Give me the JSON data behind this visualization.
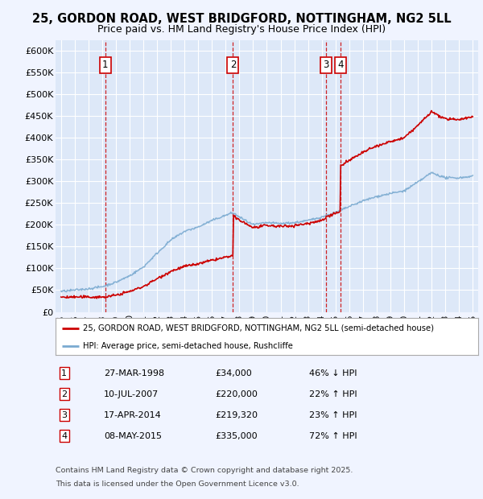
{
  "title_line1": "25, GORDON ROAD, WEST BRIDGFORD, NOTTINGHAM, NG2 5LL",
  "title_line2": "Price paid vs. HM Land Registry's House Price Index (HPI)",
  "background_color": "#f0f4ff",
  "plot_bg_color": "#dde8f8",
  "grid_color": "#ffffff",
  "ylim": [
    0,
    625000
  ],
  "yticks": [
    0,
    50000,
    100000,
    150000,
    200000,
    250000,
    300000,
    350000,
    400000,
    450000,
    500000,
    550000,
    600000
  ],
  "ytick_labels": [
    "£0",
    "£50K",
    "£100K",
    "£150K",
    "£200K",
    "£250K",
    "£300K",
    "£350K",
    "£400K",
    "£450K",
    "£500K",
    "£550K",
    "£600K"
  ],
  "xlim_start": 1994.6,
  "xlim_end": 2025.4,
  "xticks": [
    1995,
    1996,
    1997,
    1998,
    1999,
    2000,
    2001,
    2002,
    2003,
    2004,
    2005,
    2006,
    2007,
    2008,
    2009,
    2010,
    2011,
    2012,
    2013,
    2014,
    2015,
    2016,
    2017,
    2018,
    2019,
    2020,
    2021,
    2022,
    2023,
    2024,
    2025
  ],
  "sale_color": "#cc0000",
  "hpi_color": "#7aaad0",
  "vline_color": "#cc0000",
  "marker_box_color": "#cc0000",
  "sales": [
    {
      "num": 1,
      "year": 1998.22,
      "price": 34000,
      "label": "27-MAR-1998",
      "amount": "£34,000",
      "pct": "46% ↓ HPI"
    },
    {
      "num": 2,
      "year": 2007.53,
      "price": 220000,
      "label": "10-JUL-2007",
      "amount": "£220,000",
      "pct": "22% ↑ HPI"
    },
    {
      "num": 3,
      "year": 2014.29,
      "price": 219320,
      "label": "17-APR-2014",
      "amount": "£219,320",
      "pct": "23% ↑ HPI"
    },
    {
      "num": 4,
      "year": 2015.36,
      "price": 335000,
      "label": "08-MAY-2015",
      "amount": "£335,000",
      "pct": "72% ↑ HPI"
    }
  ],
  "legend_line1": "25, GORDON ROAD, WEST BRIDGFORD, NOTTINGHAM, NG2 5LL (semi-detached house)",
  "legend_line2": "HPI: Average price, semi-detached house, Rushcliffe",
  "footer1": "Contains HM Land Registry data © Crown copyright and database right 2025.",
  "footer2": "This data is licensed under the Open Government Licence v3.0."
}
